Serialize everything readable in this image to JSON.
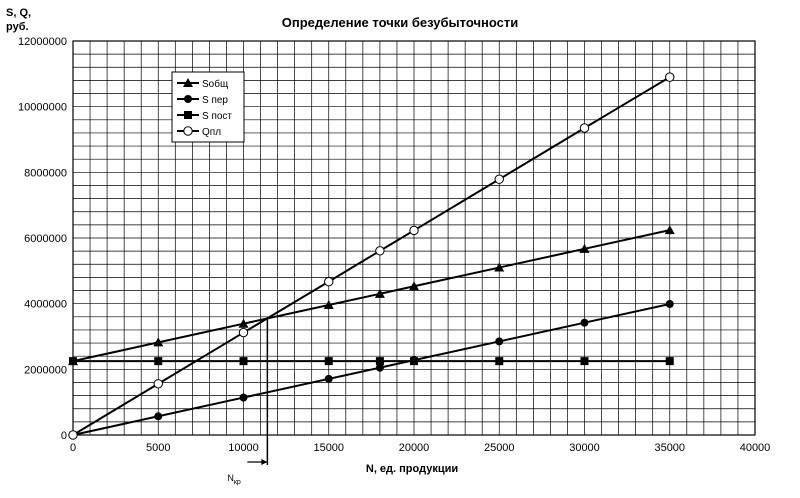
{
  "chart_data": {
    "type": "line",
    "title": "Определение точки безубыточности",
    "ylabel_lines": [
      "S, Q,",
      "руб."
    ],
    "xlabel": "N, ед. продукции",
    "breakeven_label_main": "N",
    "breakeven_label_sub": "кр",
    "breakeven_x": 11400,
    "xlim": [
      0,
      40000
    ],
    "ylim": [
      0,
      12000000
    ],
    "x_ticks": [
      0,
      5000,
      10000,
      15000,
      20000,
      25000,
      30000,
      35000,
      40000
    ],
    "y_ticks": [
      0,
      2000000,
      4000000,
      6000000,
      8000000,
      10000000,
      12000000
    ],
    "x_tick_labels": [
      "0",
      "5000",
      "10000",
      "15000",
      "20000",
      "25000",
      "30000",
      "35000",
      "40000"
    ],
    "y_tick_labels": [
      "0",
      "2000000",
      "4000000",
      "6000000",
      "8000000",
      "10000000",
      "12000000"
    ],
    "grid": true,
    "legend_position": "top-left",
    "x": [
      0,
      5000,
      10000,
      15000,
      18000,
      20000,
      25000,
      30000,
      35000
    ],
    "series": [
      {
        "name": "Sобщ",
        "marker": "triangle",
        "values": [
          2250000,
          2820000,
          3390000,
          3960000,
          4300000,
          4530000,
          5100000,
          5670000,
          6240000
        ]
      },
      {
        "name": "S пер",
        "marker": "circle",
        "values": [
          0,
          570000,
          1140000,
          1710000,
          2050000,
          2280000,
          2850000,
          3420000,
          3990000
        ]
      },
      {
        "name": "S пост",
        "marker": "square",
        "values": [
          2250000,
          2250000,
          2250000,
          2250000,
          2250000,
          2250000,
          2250000,
          2250000,
          2250000
        ]
      },
      {
        "name": "Qпл",
        "marker": "open-circle",
        "values": [
          0,
          1560000,
          3120000,
          4670000,
          5610000,
          6230000,
          7790000,
          9350000,
          10900000
        ]
      }
    ]
  }
}
